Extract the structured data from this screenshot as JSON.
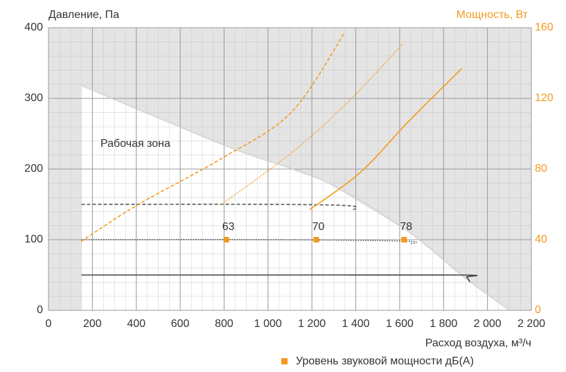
{
  "chart_data": {
    "type": "line",
    "ylabel": "Давление, Па",
    "y2label": "Мощность, Вт",
    "xlabel": "Расход воздуха, м³/ч",
    "annotation": "Рабочая зона",
    "legend": "Уровень звуковой мощности дБ(A)",
    "xlim": [
      0,
      2200
    ],
    "xticks": [
      0,
      200,
      400,
      600,
      800,
      {
        "value": 1000,
        "label": "1 000"
      },
      {
        "value": 1200,
        "label": "1 200"
      },
      {
        "value": 1400,
        "label": "1 400"
      },
      {
        "value": 1600,
        "label": "1 600"
      },
      {
        "value": 1800,
        "label": "1 800"
      },
      {
        "value": 2000,
        "label": "2 000"
      },
      {
        "value": 2200,
        "label": "2 200"
      }
    ],
    "ylim": [
      0,
      400
    ],
    "yticks": [
      0,
      100,
      200,
      300,
      400
    ],
    "y2lim": [
      0,
      160
    ],
    "y2ticks": [
      0,
      40,
      80,
      120,
      160
    ],
    "grid": true,
    "zone": {
      "color": "#cfcfcf",
      "x": [
        150,
        830,
        1263,
        1641,
        1884,
        2100
      ],
      "values": [
        318,
        230,
        182,
        111,
        49,
        0
      ]
    },
    "series": [
      {
        "color": "#555555",
        "style": "dashed",
        "axis": "y",
        "x": [
          150,
          1000,
          1370,
          1390
        ],
        "values": [
          150,
          150,
          148,
          142
        ]
      },
      {
        "color": "#555555",
        "style": "dotted",
        "axis": "y",
        "x": [
          150,
          1000,
          1620,
          1650
        ],
        "values": [
          100,
          100,
          98,
          94
        ]
      },
      {
        "color": "#444444",
        "style": "solid",
        "axis": "y",
        "x": [
          150,
          1000,
          1880,
          1905,
          1920
        ],
        "values": [
          50,
          50,
          50,
          47,
          40
        ]
      },
      {
        "color": "#f39a1e",
        "style": "dashed",
        "axis": "y2",
        "x": [
          148,
          410,
          789,
          1105,
          1348
        ],
        "values": [
          39,
          60,
          86,
          112,
          157
        ]
      },
      {
        "color": "#f39a1e",
        "style": "dotted",
        "axis": "y2",
        "x": [
          789,
          1105,
          1357,
          1616
        ],
        "values": [
          60,
          89,
          117,
          151
        ]
      },
      {
        "color": "#f39a1e",
        "style": "solid",
        "axis": "y2",
        "x": [
          1190,
          1420,
          1641,
          1884
        ],
        "values": [
          57,
          78,
          107,
          137
        ]
      }
    ],
    "points": {
      "color": "#f39a1e",
      "x": [
        810,
        1220,
        1620
      ],
      "values": [
        100,
        100,
        100
      ],
      "labels": [
        63,
        70,
        78
      ]
    }
  }
}
